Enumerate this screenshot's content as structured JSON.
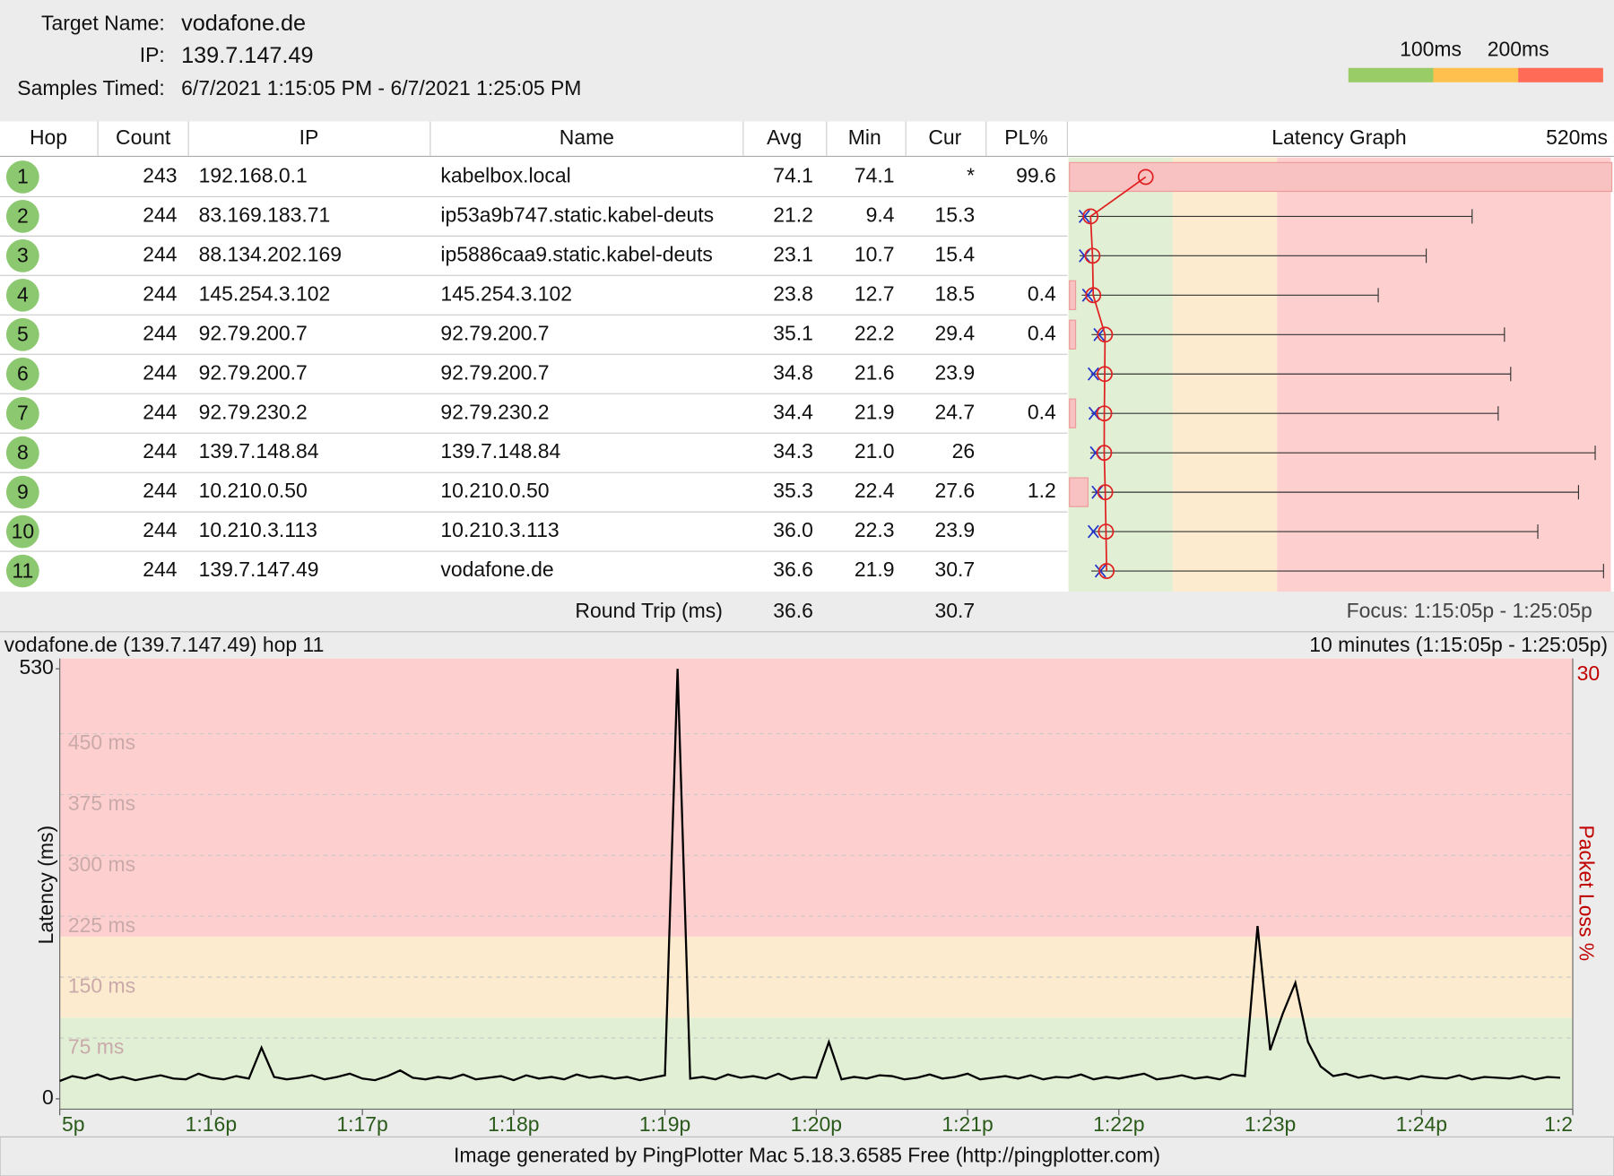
{
  "header": {
    "target_name_label": "Target Name:",
    "target_name": "vodafone.de",
    "ip_label": "IP:",
    "ip": "139.7.147.49",
    "samples_label": "Samples Timed:",
    "samples": "6/7/2021 1:15:05 PM - 6/7/2021 1:25:05 PM"
  },
  "legend": {
    "thresholds": [
      {
        "value": 100,
        "label": "100ms"
      },
      {
        "value": 200,
        "label": "200ms"
      }
    ],
    "colors": [
      "#99cc66",
      "#ffc04d",
      "#ff6b57"
    ]
  },
  "table": {
    "columns": [
      "Hop",
      "Count",
      "IP",
      "Name",
      "Avg",
      "Min",
      "Cur",
      "PL%"
    ],
    "graph_title": "Latency Graph",
    "graph_max": {
      "value": 520,
      "label": "520ms"
    },
    "rows": [
      {
        "hop": 1,
        "count": 243,
        "ip": "192.168.0.1",
        "name": "kabelbox.local",
        "avg": 74.1,
        "min": 74.1,
        "cur": "*",
        "pl": 99.6
      },
      {
        "hop": 2,
        "count": 244,
        "ip": "83.169.183.71",
        "name": "ip53a9b747.static.kabel-deuts",
        "avg": 21.2,
        "min": 9.4,
        "cur": 15.3,
        "pl": null,
        "max": 387
      },
      {
        "hop": 3,
        "count": 244,
        "ip": "88.134.202.169",
        "name": "ip5886caa9.static.kabel-deuts",
        "avg": 23.1,
        "min": 10.7,
        "cur": 15.4,
        "pl": null,
        "max": 343
      },
      {
        "hop": 4,
        "count": 244,
        "ip": "145.254.3.102",
        "name": "145.254.3.102",
        "avg": 23.8,
        "min": 12.7,
        "cur": 18.5,
        "pl": 0.4,
        "max": 297
      },
      {
        "hop": 5,
        "count": 244,
        "ip": "92.79.200.7",
        "name": "92.79.200.7",
        "avg": 35.1,
        "min": 22.2,
        "cur": 29.4,
        "pl": 0.4,
        "max": 418
      },
      {
        "hop": 6,
        "count": 244,
        "ip": "92.79.200.7",
        "name": "92.79.200.7",
        "avg": 34.8,
        "min": 21.6,
        "cur": 23.9,
        "pl": null,
        "max": 424
      },
      {
        "hop": 7,
        "count": 244,
        "ip": "92.79.230.2",
        "name": "92.79.230.2",
        "avg": 34.4,
        "min": 21.9,
        "cur": 24.7,
        "pl": 0.4,
        "max": 412
      },
      {
        "hop": 8,
        "count": 244,
        "ip": "139.7.148.84",
        "name": "139.7.148.84",
        "avg": 34.3,
        "min": {
          "value": 21,
          "label": "21.0"
        },
        "cur": 26,
        "pl": null,
        "max": 505
      },
      {
        "hop": 9,
        "count": 244,
        "ip": "10.210.0.50",
        "name": "10.210.0.50",
        "avg": 35.3,
        "min": 22.4,
        "cur": 27.6,
        "pl": 1.2,
        "max": 489
      },
      {
        "hop": 10,
        "count": 244,
        "ip": "10.210.3.113",
        "name": "10.210.3.113",
        "avg": {
          "value": 36,
          "label": "36.0"
        },
        "min": 22.3,
        "cur": 23.9,
        "pl": null,
        "max": 450
      },
      {
        "hop": 11,
        "count": 244,
        "ip": "139.7.147.49",
        "name": "vodafone.de",
        "avg": 36.6,
        "min": 21.9,
        "cur": 30.7,
        "pl": null,
        "max": 513
      }
    ]
  },
  "round_trip": {
    "label": "Round Trip (ms)",
    "avg": 36.6,
    "cur": 30.7
  },
  "focus": "Focus: 1:15:05p - 1:25:05p",
  "chart_data": {
    "type": "line",
    "title": "vodafone.de (139.7.147.49) hop 11",
    "subtitle": "10 minutes (1:15:05p - 1:25:05p)",
    "y_label": "Latency (ms)",
    "y2_label": "Packet Loss %",
    "xlim": [
      0,
      600
    ],
    "xticks": [
      {
        "value": 0,
        "label": "5p"
      },
      {
        "value": 60,
        "label": "1:16p"
      },
      {
        "value": 120,
        "label": "1:17p"
      },
      {
        "value": 180,
        "label": "1:18p"
      },
      {
        "value": 240,
        "label": "1:19p"
      },
      {
        "value": 300,
        "label": "1:20p"
      },
      {
        "value": 360,
        "label": "1:21p"
      },
      {
        "value": 420,
        "label": "1:22p"
      },
      {
        "value": 480,
        "label": "1:23p"
      },
      {
        "value": 540,
        "label": "1:24p"
      },
      {
        "value": 600,
        "label": "1:2"
      }
    ],
    "ylim": [
      0,
      530
    ],
    "yticks": [
      0,
      {
        "value": 75,
        "label": "75 ms"
      },
      {
        "value": 150,
        "label": "150 ms"
      },
      {
        "value": 225,
        "label": "225 ms"
      },
      {
        "value": 300,
        "label": "300 ms"
      },
      {
        "value": 375,
        "label": "375 ms"
      },
      {
        "value": 450,
        "label": "450 ms"
      },
      530
    ],
    "y2lim": [
      0,
      30
    ],
    "y2ticks": [
      30
    ],
    "series": [
      {
        "color": "#000000",
        "x": [
          0,
          5,
          10,
          15,
          20,
          25,
          30,
          35,
          40,
          45,
          50,
          55,
          60,
          65,
          70,
          75,
          80,
          85,
          90,
          95,
          100,
          105,
          110,
          115,
          120,
          125,
          130,
          135,
          140,
          145,
          150,
          155,
          160,
          165,
          170,
          175,
          180,
          185,
          190,
          195,
          200,
          205,
          210,
          215,
          220,
          225,
          230,
          235,
          240,
          245,
          250,
          255,
          260,
          265,
          270,
          275,
          280,
          285,
          290,
          295,
          300,
          305,
          310,
          315,
          320,
          325,
          330,
          335,
          340,
          345,
          350,
          355,
          360,
          365,
          370,
          375,
          380,
          385,
          390,
          395,
          400,
          405,
          410,
          415,
          420,
          425,
          430,
          435,
          440,
          445,
          450,
          455,
          460,
          465,
          470,
          475,
          480,
          485,
          490,
          495,
          500,
          505,
          510,
          515,
          520,
          525,
          530,
          535,
          540,
          545,
          550,
          555,
          560,
          565,
          570,
          575,
          580,
          585,
          590,
          595
        ],
        "values": [
          22,
          28,
          25,
          30,
          24,
          27,
          23,
          26,
          29,
          25,
          24,
          31,
          26,
          24,
          28,
          25,
          63,
          27,
          24,
          26,
          29,
          24,
          27,
          31,
          25,
          23,
          28,
          35,
          26,
          24,
          27,
          25,
          30,
          24,
          26,
          28,
          23,
          29,
          25,
          27,
          24,
          30,
          26,
          28,
          25,
          27,
          23,
          26,
          29,
          530,
          25,
          27,
          24,
          30,
          26,
          28,
          25,
          31,
          24,
          27,
          26,
          70,
          24,
          27,
          25,
          29,
          28,
          24,
          26,
          30,
          25,
          27,
          31,
          24,
          26,
          28,
          25,
          29,
          24,
          27,
          26,
          30,
          24,
          27,
          25,
          28,
          31,
          24,
          26,
          29,
          25,
          27,
          24,
          30,
          28,
          213,
          60,
          105,
          143,
          70,
          40,
          28,
          31,
          26,
          29,
          25,
          27,
          24,
          28,
          26,
          25,
          29,
          24,
          27,
          26,
          25,
          28,
          24,
          27,
          26
        ]
      }
    ]
  },
  "footer": "Image generated by PingPlotter Mac 5.18.3.6585 Free (http://pingplotter.com)"
}
